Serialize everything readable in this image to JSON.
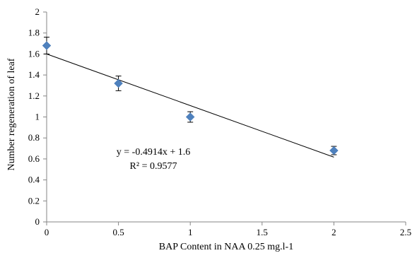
{
  "chart_data": {
    "type": "scatter",
    "title": "",
    "xlabel": "BAP Content in NAA  0.25 mg.l-1",
    "ylabel": "Number regeneration of leaf",
    "xlim": [
      0,
      2.5
    ],
    "ylim": [
      0,
      2
    ],
    "x_ticks": [
      "0",
      "0.5",
      "1",
      "1.5",
      "2",
      "2.5"
    ],
    "y_ticks": [
      "0",
      "0.2",
      "0.4",
      "0.6",
      "0.8",
      "1",
      "1.2",
      "1.4",
      "1.6",
      "1.8",
      "2"
    ],
    "x_tick_values": [
      0,
      0.5,
      1,
      1.5,
      2,
      2.5
    ],
    "y_tick_values": [
      0,
      0.2,
      0.4,
      0.6,
      0.8,
      1,
      1.2,
      1.4,
      1.6,
      1.8,
      2
    ],
    "series": [
      {
        "x": [
          0,
          0.5,
          1,
          2
        ],
        "y": [
          1.68,
          1.32,
          1.0,
          0.68
        ],
        "error": [
          0.08,
          0.07,
          0.05,
          0.04
        ],
        "color": "#4f81bd",
        "marker": "diamond"
      }
    ],
    "trendline": {
      "type": "linear",
      "slope": -0.4914,
      "intercept": 1.6,
      "x_range": [
        0,
        2
      ],
      "color": "#000000",
      "equation": "y = -0.4914x + 1.6",
      "r_squared": "R² = 0.9577"
    },
    "grid": false,
    "legend": "none"
  }
}
